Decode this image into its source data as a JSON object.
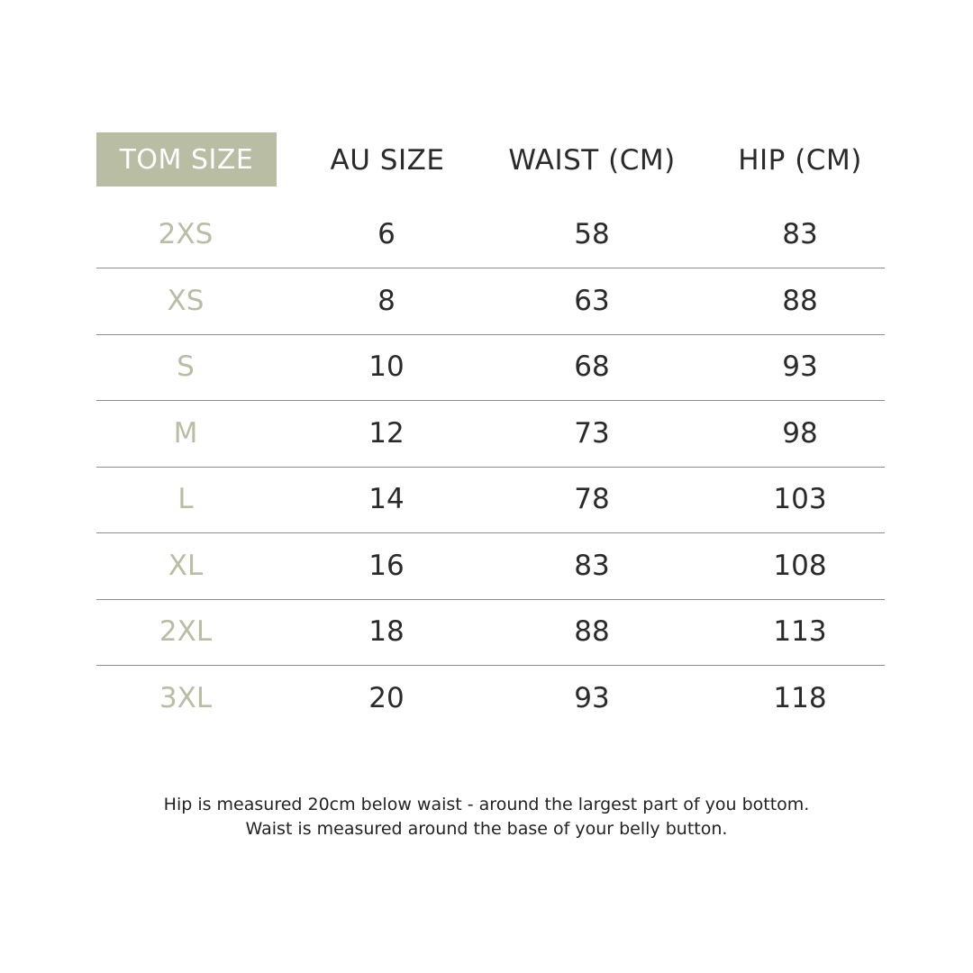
{
  "table": {
    "headers": [
      "TOM SIZE",
      "AU SIZE",
      "WAIST (CM)",
      "HIP (CM)"
    ],
    "rows": [
      [
        "2XS",
        "6",
        "58",
        "83"
      ],
      [
        "XS",
        "8",
        "63",
        "88"
      ],
      [
        "S",
        "10",
        "68",
        "93"
      ],
      [
        "M",
        "12",
        "73",
        "98"
      ],
      [
        "L",
        "14",
        "78",
        "103"
      ],
      [
        "XL",
        "16",
        "83",
        "108"
      ],
      [
        "2XL",
        "18",
        "88",
        "113"
      ],
      [
        "3XL",
        "20",
        "93",
        "118"
      ]
    ]
  },
  "notes": [
    "Hip is measured 20cm below waist - around the largest part of you bottom.",
    "Waist is measured around the base of your belly button."
  ],
  "colors": {
    "accent": "#b8bda3",
    "text": "#2a2a2a",
    "divider": "#8c8c8c"
  }
}
